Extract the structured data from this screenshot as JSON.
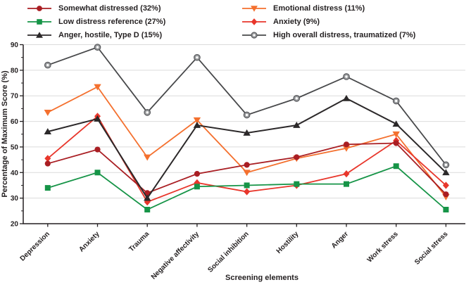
{
  "chart_data": {
    "type": "line",
    "title": "",
    "xlabel": "Screening elements",
    "ylabel": "Percentage of Maximum Score (%)",
    "ylim": [
      20,
      90
    ],
    "ytick_step": 10,
    "yminor_step": 5,
    "grid": "horizontal-major",
    "legend_position": "top, two columns",
    "categories": [
      "Depression",
      "Anxiety",
      "Trauma",
      "Negative affectivity",
      "Social inhibition",
      "Hostility",
      "Anger",
      "Work stress",
      "Social stress"
    ],
    "series": [
      {
        "name": "Somewhat distressed (32%)",
        "marker": "circle",
        "color": "#A91E23",
        "legend_column": "left",
        "values": [
          43.5,
          49,
          32,
          39.5,
          43,
          46,
          51,
          51.5,
          31.5
        ]
      },
      {
        "name": "Low distress reference (27%)",
        "marker": "square",
        "color": "#169447",
        "legend_column": "left",
        "values": [
          34,
          40,
          25.5,
          34.5,
          35,
          35.5,
          35.5,
          42.5,
          25.5
        ]
      },
      {
        "name": "Anger, hostile, Type D (15%)",
        "marker": "triangle-up",
        "color": "#2B2829",
        "legend_column": "left",
        "values": [
          56,
          61,
          30,
          58.5,
          55.5,
          58.5,
          69,
          59,
          40
        ]
      },
      {
        "name": "Emotional distress (11%)",
        "marker": "triangle-down",
        "color": "#F4702E",
        "legend_column": "right",
        "values": [
          63.5,
          73.5,
          46,
          60.5,
          40,
          45.5,
          49.5,
          55,
          30.5
        ]
      },
      {
        "name": "Anxiety (9%)",
        "marker": "diamond",
        "color": "#E8362B",
        "legend_column": "right",
        "values": [
          45.5,
          62,
          28.5,
          36,
          32.5,
          35,
          39.5,
          52.5,
          35
        ]
      },
      {
        "name": "High overall distress, traumatized (7%)",
        "marker": "open-circle",
        "color": "#47484A",
        "marker_color": "#97999B",
        "legend_column": "right",
        "values": [
          82,
          89,
          63.5,
          85,
          62.5,
          69,
          77.5,
          68,
          43
        ]
      }
    ],
    "colors": {
      "axis": "#231F20",
      "grid": "#DBDBDB",
      "text": "#231F20",
      "background": "#FFFFFF"
    }
  }
}
